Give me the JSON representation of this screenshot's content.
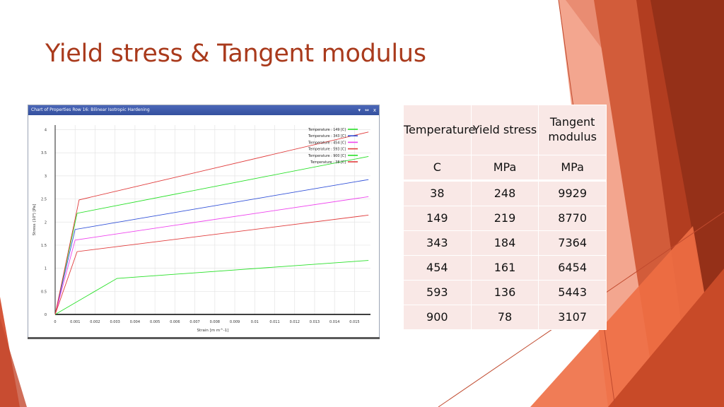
{
  "slide": {
    "title": "Yield stress & Tangent modulus"
  },
  "window": {
    "title": "Chart of Properties Row 16: Bilinear Isotropic Hardening",
    "buttons": [
      "▾",
      "⇔",
      "x"
    ]
  },
  "table": {
    "headers": [
      "Temperature",
      "Yield stress",
      "Tangent modulus"
    ],
    "units": [
      "C",
      "MPa",
      "MPa"
    ],
    "rows": [
      [
        "38",
        "248",
        "9929"
      ],
      [
        "149",
        "219",
        "8770"
      ],
      [
        "343",
        "184",
        "7364"
      ],
      [
        "454",
        "161",
        "6454"
      ],
      [
        "593",
        "136",
        "5443"
      ],
      [
        "900",
        "78",
        "3107"
      ]
    ]
  },
  "chart_data": {
    "type": "line",
    "xlabel": "Strain [m m^-1]",
    "ylabel": "Stress (10⁸) [Pa]",
    "xlim": [
      0,
      0.0158
    ],
    "ylim": [
      0,
      4.1
    ],
    "xticks": [
      "0",
      "0.001",
      "0.002",
      "0.003",
      "0.004",
      "0.005",
      "0.006",
      "0.007",
      "0.008",
      "0.009",
      "0.01",
      "0.011",
      "0.012",
      "0.013",
      "0.014",
      "0.015"
    ],
    "yticks": [
      "0",
      "0.5",
      "1",
      "1.5",
      "2",
      "2.5",
      "3",
      "3.5",
      "4"
    ],
    "grid": true,
    "legend_position": "top-right",
    "series": [
      {
        "name": "Temperature : 149 [C]",
        "color": "#28e028",
        "points": [
          [
            0,
            0
          ],
          [
            0.0011,
            2.19
          ],
          [
            0.0157,
            3.42
          ]
        ]
      },
      {
        "name": "Temperature : 343 [C]",
        "color": "#3050d8",
        "points": [
          [
            0,
            0
          ],
          [
            0.001,
            1.84
          ],
          [
            0.0157,
            2.92
          ]
        ]
      },
      {
        "name": "Temperature : 454 [C]",
        "color": "#ee44ee",
        "points": [
          [
            0,
            0
          ],
          [
            0.001,
            1.61
          ],
          [
            0.0157,
            2.55
          ]
        ]
      },
      {
        "name": "Temperature : 593 [C]",
        "color": "#e03c3c",
        "points": [
          [
            0,
            0
          ],
          [
            0.0011,
            1.36
          ],
          [
            0.0157,
            2.15
          ]
        ]
      },
      {
        "name": "Temperature : 900 [C]",
        "color": "#28e028",
        "points": [
          [
            0,
            0
          ],
          [
            0.0031,
            0.78
          ],
          [
            0.0157,
            1.17
          ]
        ]
      },
      {
        "name": "Temperature : 38 [C]",
        "color": "#e03c3c",
        "points": [
          [
            0,
            0
          ],
          [
            0.0012,
            2.48
          ],
          [
            0.0157,
            3.95
          ]
        ]
      }
    ]
  }
}
